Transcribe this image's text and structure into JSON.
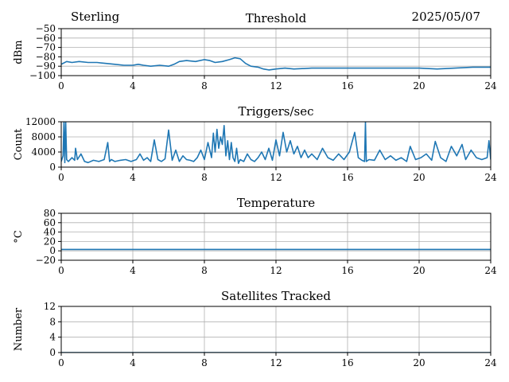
{
  "header": {
    "station": "Sterling",
    "date": "2025/05/07"
  },
  "colors": {
    "line": "#1f77b4",
    "grid": "#b0b0b0",
    "axis": "#000000"
  },
  "chart_data": [
    {
      "type": "line",
      "title": "Threshold",
      "ylabel": "dBm",
      "xlim": [
        0,
        24
      ],
      "ylim": [
        -100,
        -50
      ],
      "xticks": [
        0,
        4,
        8,
        12,
        16,
        20,
        24
      ],
      "yticks": [
        -100,
        -90,
        -80,
        -70,
        -60,
        -50
      ],
      "grid": true,
      "series": [
        {
          "x": [
            0,
            0.3,
            0.6,
            1.0,
            1.5,
            2.0,
            2.5,
            3.0,
            3.5,
            4.0,
            4.3,
            4.6,
            5.0,
            5.5,
            6.0,
            6.3,
            6.6,
            7.0,
            7.5,
            8.0,
            8.3,
            8.6,
            9.0,
            9.4,
            9.7,
            10.0,
            10.3,
            10.6,
            11.0,
            11.3,
            11.6,
            12.0,
            12.5,
            13.0,
            14.0,
            15.0,
            16.0,
            17.0,
            18.0,
            19.0,
            20.0,
            21.0,
            22.0,
            23.0,
            24.0
          ],
          "y": [
            -88,
            -85,
            -86,
            -85,
            -86,
            -86,
            -87,
            -88,
            -89,
            -89,
            -88,
            -89,
            -90,
            -89,
            -90,
            -88,
            -85,
            -84,
            -85,
            -83,
            -84,
            -86,
            -85,
            -83,
            -81,
            -82,
            -87,
            -90,
            -91,
            -93,
            -94,
            -93,
            -92,
            -93,
            -92,
            -92,
            -92,
            -92,
            -92,
            -92,
            -92,
            -93,
            -92,
            -91,
            -91
          ]
        }
      ]
    },
    {
      "type": "line",
      "title": "Triggers/sec",
      "ylabel": "Count",
      "xlim": [
        0,
        24
      ],
      "ylim": [
        0,
        12000
      ],
      "xticks": [
        0,
        4,
        8,
        12,
        16,
        20,
        24
      ],
      "yticks": [
        0,
        4000,
        8000,
        12000
      ],
      "grid": true,
      "series": [
        {
          "x": [
            0,
            0.1,
            0.15,
            0.2,
            0.25,
            0.3,
            0.4,
            0.6,
            0.75,
            0.8,
            0.9,
            1.1,
            1.3,
            1.5,
            1.8,
            2.1,
            2.4,
            2.6,
            2.7,
            2.8,
            3.0,
            3.3,
            3.6,
            3.9,
            4.2,
            4.4,
            4.6,
            4.8,
            5.0,
            5.2,
            5.4,
            5.6,
            5.8,
            6.0,
            6.2,
            6.4,
            6.6,
            6.8,
            7.0,
            7.2,
            7.4,
            7.6,
            7.8,
            8.0,
            8.2,
            8.4,
            8.5,
            8.6,
            8.7,
            8.8,
            8.9,
            9.0,
            9.1,
            9.2,
            9.3,
            9.4,
            9.5,
            9.6,
            9.7,
            9.8,
            9.9,
            10.0,
            10.2,
            10.4,
            10.6,
            10.8,
            11.0,
            11.2,
            11.4,
            11.6,
            11.8,
            12.0,
            12.2,
            12.4,
            12.6,
            12.8,
            13.0,
            13.2,
            13.4,
            13.6,
            13.8,
            14.0,
            14.3,
            14.6,
            14.9,
            15.2,
            15.5,
            15.8,
            16.1,
            16.4,
            16.6,
            16.8,
            16.95,
            17.0,
            17.05,
            17.2,
            17.5,
            17.8,
            18.1,
            18.4,
            18.7,
            19.0,
            19.3,
            19.5,
            19.8,
            20.1,
            20.4,
            20.7,
            20.9,
            21.2,
            21.5,
            21.8,
            22.1,
            22.4,
            22.6,
            22.9,
            23.2,
            23.5,
            23.8,
            23.9,
            24.0
          ],
          "y": [
            1500,
            3000,
            12000,
            1200,
            12000,
            2000,
            1500,
            2500,
            1800,
            5000,
            2000,
            3500,
            1500,
            1200,
            1800,
            1500,
            2000,
            6500,
            1500,
            2000,
            1500,
            1800,
            2000,
            1500,
            2000,
            3500,
            1800,
            2500,
            1500,
            7200,
            2000,
            1500,
            2200,
            9800,
            1800,
            4500,
            1500,
            3000,
            2000,
            1800,
            1500,
            2500,
            4500,
            2000,
            6500,
            2500,
            9000,
            4000,
            10000,
            5000,
            8000,
            6000,
            11000,
            3000,
            7000,
            2000,
            6500,
            2500,
            1500,
            5000,
            1000,
            2000,
            1500,
            3500,
            2000,
            1500,
            2500,
            4000,
            2000,
            5000,
            1800,
            7200,
            3000,
            9200,
            4000,
            7000,
            3500,
            5500,
            2500,
            4500,
            2500,
            3500,
            2000,
            5000,
            2500,
            1800,
            3500,
            2000,
            4000,
            9200,
            2500,
            1800,
            1500,
            12000,
            1500,
            2000,
            1800,
            4500,
            2000,
            3000,
            1800,
            2500,
            1500,
            5500,
            2000,
            2500,
            3500,
            1800,
            6800,
            2500,
            1500,
            5500,
            3000,
            6000,
            2000,
            4500,
            2500,
            2000,
            2500,
            7000,
            2000
          ]
        }
      ]
    },
    {
      "type": "line",
      "title": "Temperature",
      "ylabel": "°C",
      "xlim": [
        0,
        24
      ],
      "ylim": [
        -20,
        80
      ],
      "xticks": [
        0,
        4,
        8,
        12,
        16,
        20,
        24
      ],
      "yticks": [
        -20,
        0,
        20,
        40,
        60,
        80
      ],
      "grid": true,
      "series": [
        {
          "x": [
            0,
            24
          ],
          "y": [
            3,
            3
          ]
        }
      ]
    },
    {
      "type": "line",
      "title": "Satellites Tracked",
      "ylabel": "Number",
      "xlim": [
        0,
        24
      ],
      "ylim": [
        0,
        12
      ],
      "xticks": [
        0,
        4,
        8,
        12,
        16,
        20,
        24
      ],
      "yticks": [
        0,
        4,
        8,
        12
      ],
      "grid": true,
      "series": [
        {
          "x": [
            0,
            24
          ],
          "y": [
            0,
            0
          ]
        }
      ]
    }
  ]
}
